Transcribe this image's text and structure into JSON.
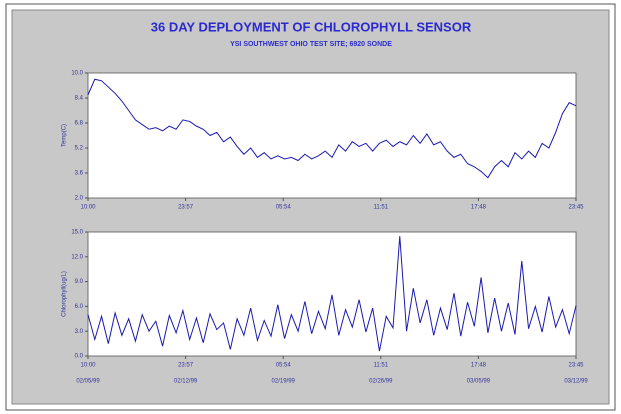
{
  "header": {
    "title": "36 DAY DEPLOYMENT OF CHLOROPHYLL SENSOR",
    "subtitle": "YSI SOUTHWEST OHIO TEST SITE; 6920 SONDE"
  },
  "dates": [
    "02/05/99",
    "02/12/99",
    "02/19/99",
    "02/26/99",
    "03/05/99",
    "03/12/99"
  ],
  "chart_data": [
    {
      "type": "line",
      "ylabel": "Temp(C)",
      "color": "#1a1ab0",
      "x": [
        0,
        0.5,
        1,
        1.5,
        2,
        2.5,
        3,
        3.5,
        4,
        4.5,
        5,
        5.5,
        6,
        6.5,
        7,
        7.5,
        8,
        8.5,
        9,
        9.5,
        10,
        10.5,
        11,
        11.5,
        12,
        12.5,
        13,
        13.5,
        14,
        14.5,
        15,
        15.5,
        16,
        16.5,
        17,
        17.5,
        18,
        18.5,
        19,
        19.5,
        20,
        20.5,
        21,
        21.5,
        22,
        22.5,
        23,
        23.5,
        24,
        24.5,
        25,
        25.5,
        26,
        26.5,
        27,
        27.5,
        28,
        28.5,
        29,
        29.5,
        30,
        30.5,
        31,
        31.5,
        32,
        32.5,
        33,
        33.5,
        34,
        34.5,
        35,
        35.5,
        36
      ],
      "values": [
        8.6,
        9.6,
        9.5,
        9.1,
        8.7,
        8.2,
        7.6,
        7.0,
        6.7,
        6.4,
        6.5,
        6.3,
        6.6,
        6.4,
        7.0,
        6.9,
        6.6,
        6.4,
        6.0,
        6.2,
        5.6,
        5.9,
        5.3,
        4.8,
        5.2,
        4.6,
        4.9,
        4.5,
        4.7,
        4.5,
        4.6,
        4.4,
        4.8,
        4.5,
        4.7,
        5.0,
        4.6,
        5.4,
        5.0,
        5.6,
        5.3,
        5.5,
        5.0,
        5.5,
        5.7,
        5.3,
        5.6,
        5.4,
        6.0,
        5.5,
        6.1,
        5.4,
        5.6,
        5.0,
        4.6,
        4.8,
        4.2,
        4.0,
        3.7,
        3.3,
        4.0,
        4.4,
        4.0,
        4.9,
        4.5,
        5.0,
        4.6,
        5.5,
        5.2,
        6.2,
        7.4,
        8.1,
        7.9
      ],
      "xlim": [
        0,
        36
      ],
      "xticks": [
        {
          "value": 0,
          "label": "10:00"
        },
        {
          "value": 7.2,
          "label": "23:57"
        },
        {
          "value": 14.4,
          "label": "05:54"
        },
        {
          "value": 21.6,
          "label": "11:51"
        },
        {
          "value": 28.8,
          "label": "17:48"
        },
        {
          "value": 36,
          "label": "23:45"
        }
      ],
      "ylim": [
        2,
        10
      ],
      "yticks": [
        {
          "value": 2,
          "label": "2.0"
        },
        3.6,
        5.2,
        6.8,
        8.4,
        {
          "value": 10,
          "label": "10.0"
        }
      ]
    },
    {
      "type": "line",
      "ylabel": "Chlorophyll(ug/L)",
      "color": "#1a1ab0",
      "x": [
        0,
        0.5,
        1,
        1.5,
        2,
        2.5,
        3,
        3.5,
        4,
        4.5,
        5,
        5.5,
        6,
        6.5,
        7,
        7.5,
        8,
        8.5,
        9,
        9.5,
        10,
        10.5,
        11,
        11.5,
        12,
        12.5,
        13,
        13.5,
        14,
        14.5,
        15,
        15.5,
        16,
        16.5,
        17,
        17.5,
        18,
        18.5,
        19,
        19.5,
        20,
        20.5,
        21,
        21.5,
        22,
        22.5,
        23,
        23.5,
        24,
        24.5,
        25,
        25.5,
        26,
        26.5,
        27,
        27.5,
        28,
        28.5,
        29,
        29.5,
        30,
        30.5,
        31,
        31.5,
        32,
        32.5,
        33,
        33.5,
        34,
        34.5,
        35,
        35.5,
        36
      ],
      "values": [
        5.0,
        2.0,
        4.8,
        1.5,
        5.2,
        2.5,
        4.5,
        1.8,
        5.0,
        3.0,
        4.2,
        1.2,
        4.9,
        2.8,
        5.5,
        2.0,
        4.6,
        1.6,
        5.1,
        3.2,
        4.0,
        0.8,
        4.5,
        2.5,
        5.8,
        1.9,
        4.3,
        2.4,
        6.2,
        2.1,
        5.0,
        3.0,
        6.6,
        2.7,
        5.4,
        3.3,
        7.4,
        2.5,
        5.6,
        3.5,
        6.8,
        2.9,
        5.8,
        0.6,
        4.8,
        3.4,
        14.5,
        3.0,
        8.2,
        4.0,
        6.8,
        2.5,
        5.8,
        3.2,
        7.6,
        2.4,
        6.5,
        3.6,
        9.5,
        2.8,
        7.0,
        3.0,
        6.4,
        2.6,
        11.5,
        3.3,
        6.0,
        2.9,
        7.2,
        3.5,
        5.6,
        2.7,
        6.1
      ],
      "xlim": [
        0,
        36
      ],
      "xticks": [
        {
          "value": 0,
          "label": "10:00"
        },
        {
          "value": 7.2,
          "label": "23:57"
        },
        {
          "value": 14.4,
          "label": "05:54"
        },
        {
          "value": 21.6,
          "label": "11:51"
        },
        {
          "value": 28.8,
          "label": "17:48"
        },
        {
          "value": 36,
          "label": "23:45"
        }
      ],
      "ylim": [
        0,
        15
      ],
      "yticks": [
        {
          "value": 0,
          "label": "0.0"
        },
        {
          "value": 3,
          "label": "3.0"
        },
        {
          "value": 6,
          "label": "6.0"
        },
        {
          "value": 9,
          "label": "9.0"
        },
        {
          "value": 12,
          "label": "12.0"
        },
        {
          "value": 15,
          "label": "15.0"
        }
      ]
    }
  ]
}
